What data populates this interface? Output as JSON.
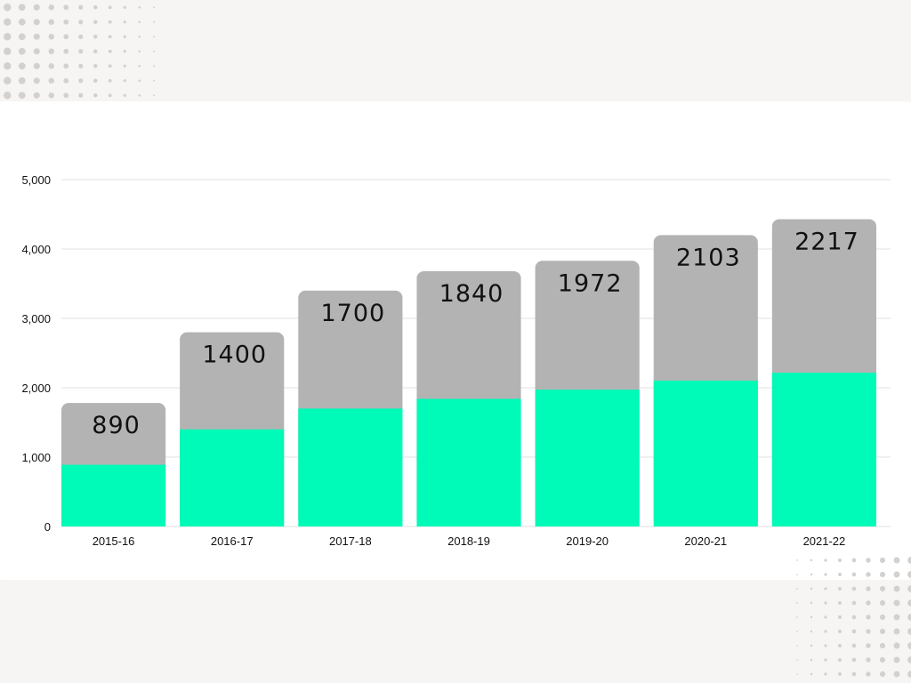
{
  "colors": {
    "background": "#f6f5f3",
    "card": "#ffffff",
    "bar_total": "#b3b3b3",
    "bar_value": "#00fab7",
    "grid": "#e2e2e2",
    "dots": "#d3d0cd"
  },
  "chart_data": {
    "type": "bar",
    "categories": [
      "2015-16",
      "2016-17",
      "2017-18",
      "2018-19",
      "2019-20",
      "2020-21",
      "2021-22"
    ],
    "series": [
      {
        "values": [
          890,
          1400,
          1700,
          1840,
          1972,
          2103,
          2217
        ]
      },
      {
        "values": [
          1780,
          2800,
          3400,
          3680,
          3830,
          4200,
          4430
        ]
      }
    ],
    "data_labels": [
      "890",
      "1400",
      "1700",
      "1840",
      "1972",
      "2103",
      "2217"
    ],
    "y_ticks": [
      0,
      1000,
      2000,
      3000,
      4000,
      5000
    ],
    "y_tick_labels": [
      "0",
      "1,000",
      "2,000",
      "3,000",
      "4,000",
      "5,000"
    ],
    "ylim": [
      0,
      5000
    ],
    "grid": true,
    "legend": "none"
  }
}
